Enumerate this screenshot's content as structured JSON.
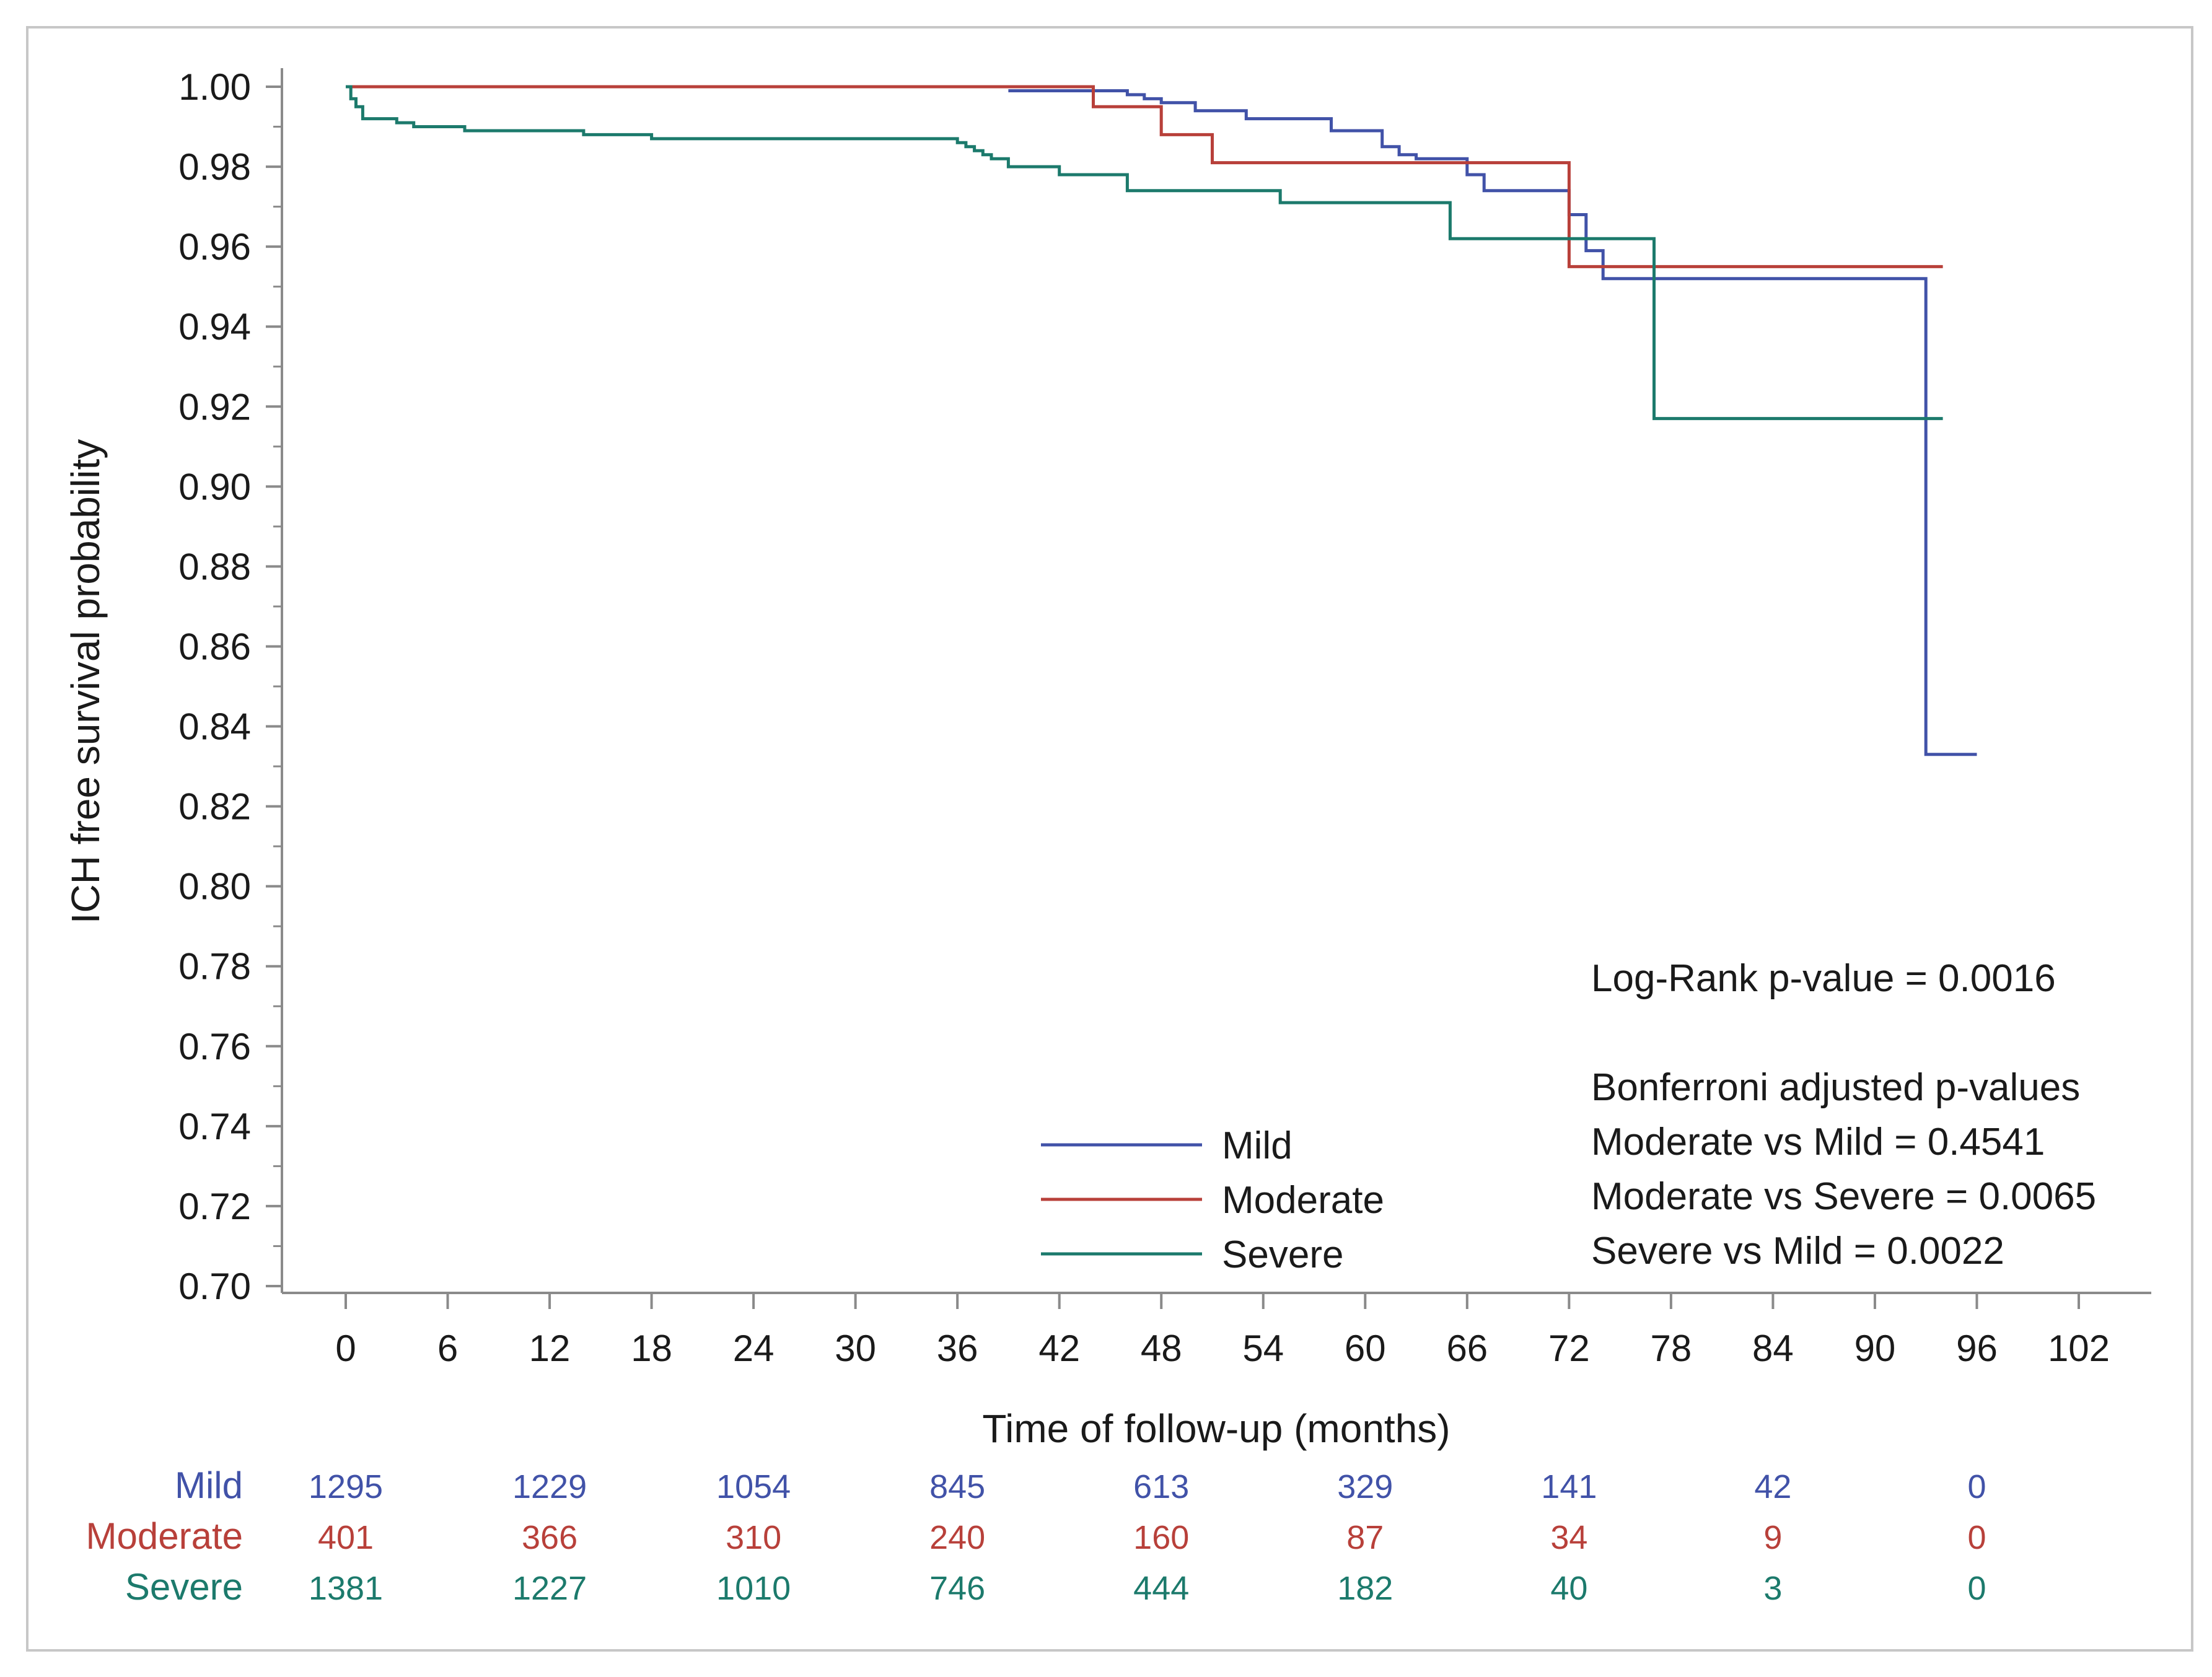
{
  "colors": {
    "mild": "#4152a8",
    "moderate": "#b8403a",
    "severe": "#1c7a6c",
    "axis": "#8a8a8a",
    "text": "#1a1a1a",
    "frame": "#c7c7c7"
  },
  "chart_data": {
    "type": "line",
    "title": "",
    "xlabel": "Time of follow-up (months)",
    "ylabel": "ICH free survival probability",
    "xlim": [
      -4,
      106
    ],
    "ylim": [
      0.7,
      1.0
    ],
    "xticks": [
      "0",
      "6",
      "12",
      "18",
      "24",
      "30",
      "36",
      "42",
      "48",
      "54",
      "60",
      "66",
      "72",
      "78",
      "84",
      "90",
      "96",
      "102"
    ],
    "yticks": [
      "0.70",
      "0.72",
      "0.74",
      "0.76",
      "0.78",
      "0.80",
      "0.82",
      "0.84",
      "0.86",
      "0.88",
      "0.90",
      "0.92",
      "0.94",
      "0.96",
      "0.98",
      "1.00"
    ],
    "series": [
      {
        "name": "Mild",
        "color_key": "mild",
        "x": [
          39,
          44,
          45,
          46,
          47,
          48,
          50,
          53,
          58,
          61,
          62,
          63,
          66,
          67,
          72,
          73,
          74,
          93,
          96
        ],
        "y": [
          0.999,
          0.999,
          0.999,
          0.998,
          0.997,
          0.996,
          0.994,
          0.992,
          0.989,
          0.985,
          0.983,
          0.982,
          0.978,
          0.974,
          0.968,
          0.959,
          0.952,
          0.833,
          0.833
        ]
      },
      {
        "name": "Moderate",
        "color_key": "moderate",
        "x": [
          0,
          44,
          48,
          51,
          72,
          94
        ],
        "y": [
          1.0,
          0.995,
          0.988,
          0.981,
          0.955,
          0.955
        ]
      },
      {
        "name": "Severe",
        "color_key": "severe",
        "x": [
          0,
          0.3,
          0.6,
          1,
          3,
          4,
          7,
          14,
          18,
          36,
          36.5,
          37,
          37.5,
          38,
          39,
          42,
          46,
          55,
          65,
          77,
          94
        ],
        "y": [
          1.0,
          0.997,
          0.995,
          0.992,
          0.991,
          0.99,
          0.989,
          0.988,
          0.987,
          0.986,
          0.985,
          0.984,
          0.983,
          0.982,
          0.98,
          0.978,
          0.974,
          0.971,
          0.962,
          0.917,
          0.917
        ]
      }
    ],
    "at_risk": {
      "times": [
        "0",
        "12",
        "24",
        "36",
        "48",
        "60",
        "72",
        "84",
        "96"
      ],
      "rows": [
        {
          "label": "Mild",
          "color_key": "mild",
          "values": [
            "1295",
            "1229",
            "1054",
            "845",
            "613",
            "329",
            "141",
            "42",
            "0"
          ]
        },
        {
          "label": "Moderate",
          "color_key": "moderate",
          "values": [
            "401",
            "366",
            "310",
            "240",
            "160",
            "87",
            "34",
            "9",
            "0"
          ]
        },
        {
          "label": "Severe",
          "color_key": "severe",
          "values": [
            "1381",
            "1227",
            "1010",
            "746",
            "444",
            "182",
            "40",
            "3",
            "0"
          ]
        }
      ]
    },
    "annotations": {
      "logrank": "Log-Rank p-value = 0.0016",
      "bonferroni_title": "Bonferroni adjusted p-values",
      "comparisons": [
        "Moderate vs Mild = 0.4541",
        "Moderate vs Severe = 0.0065",
        "Severe vs Mild = 0.0022"
      ]
    },
    "legend": {
      "position": "bottom-center",
      "entries": [
        "Mild",
        "Moderate",
        "Severe"
      ]
    },
    "grid": false
  }
}
